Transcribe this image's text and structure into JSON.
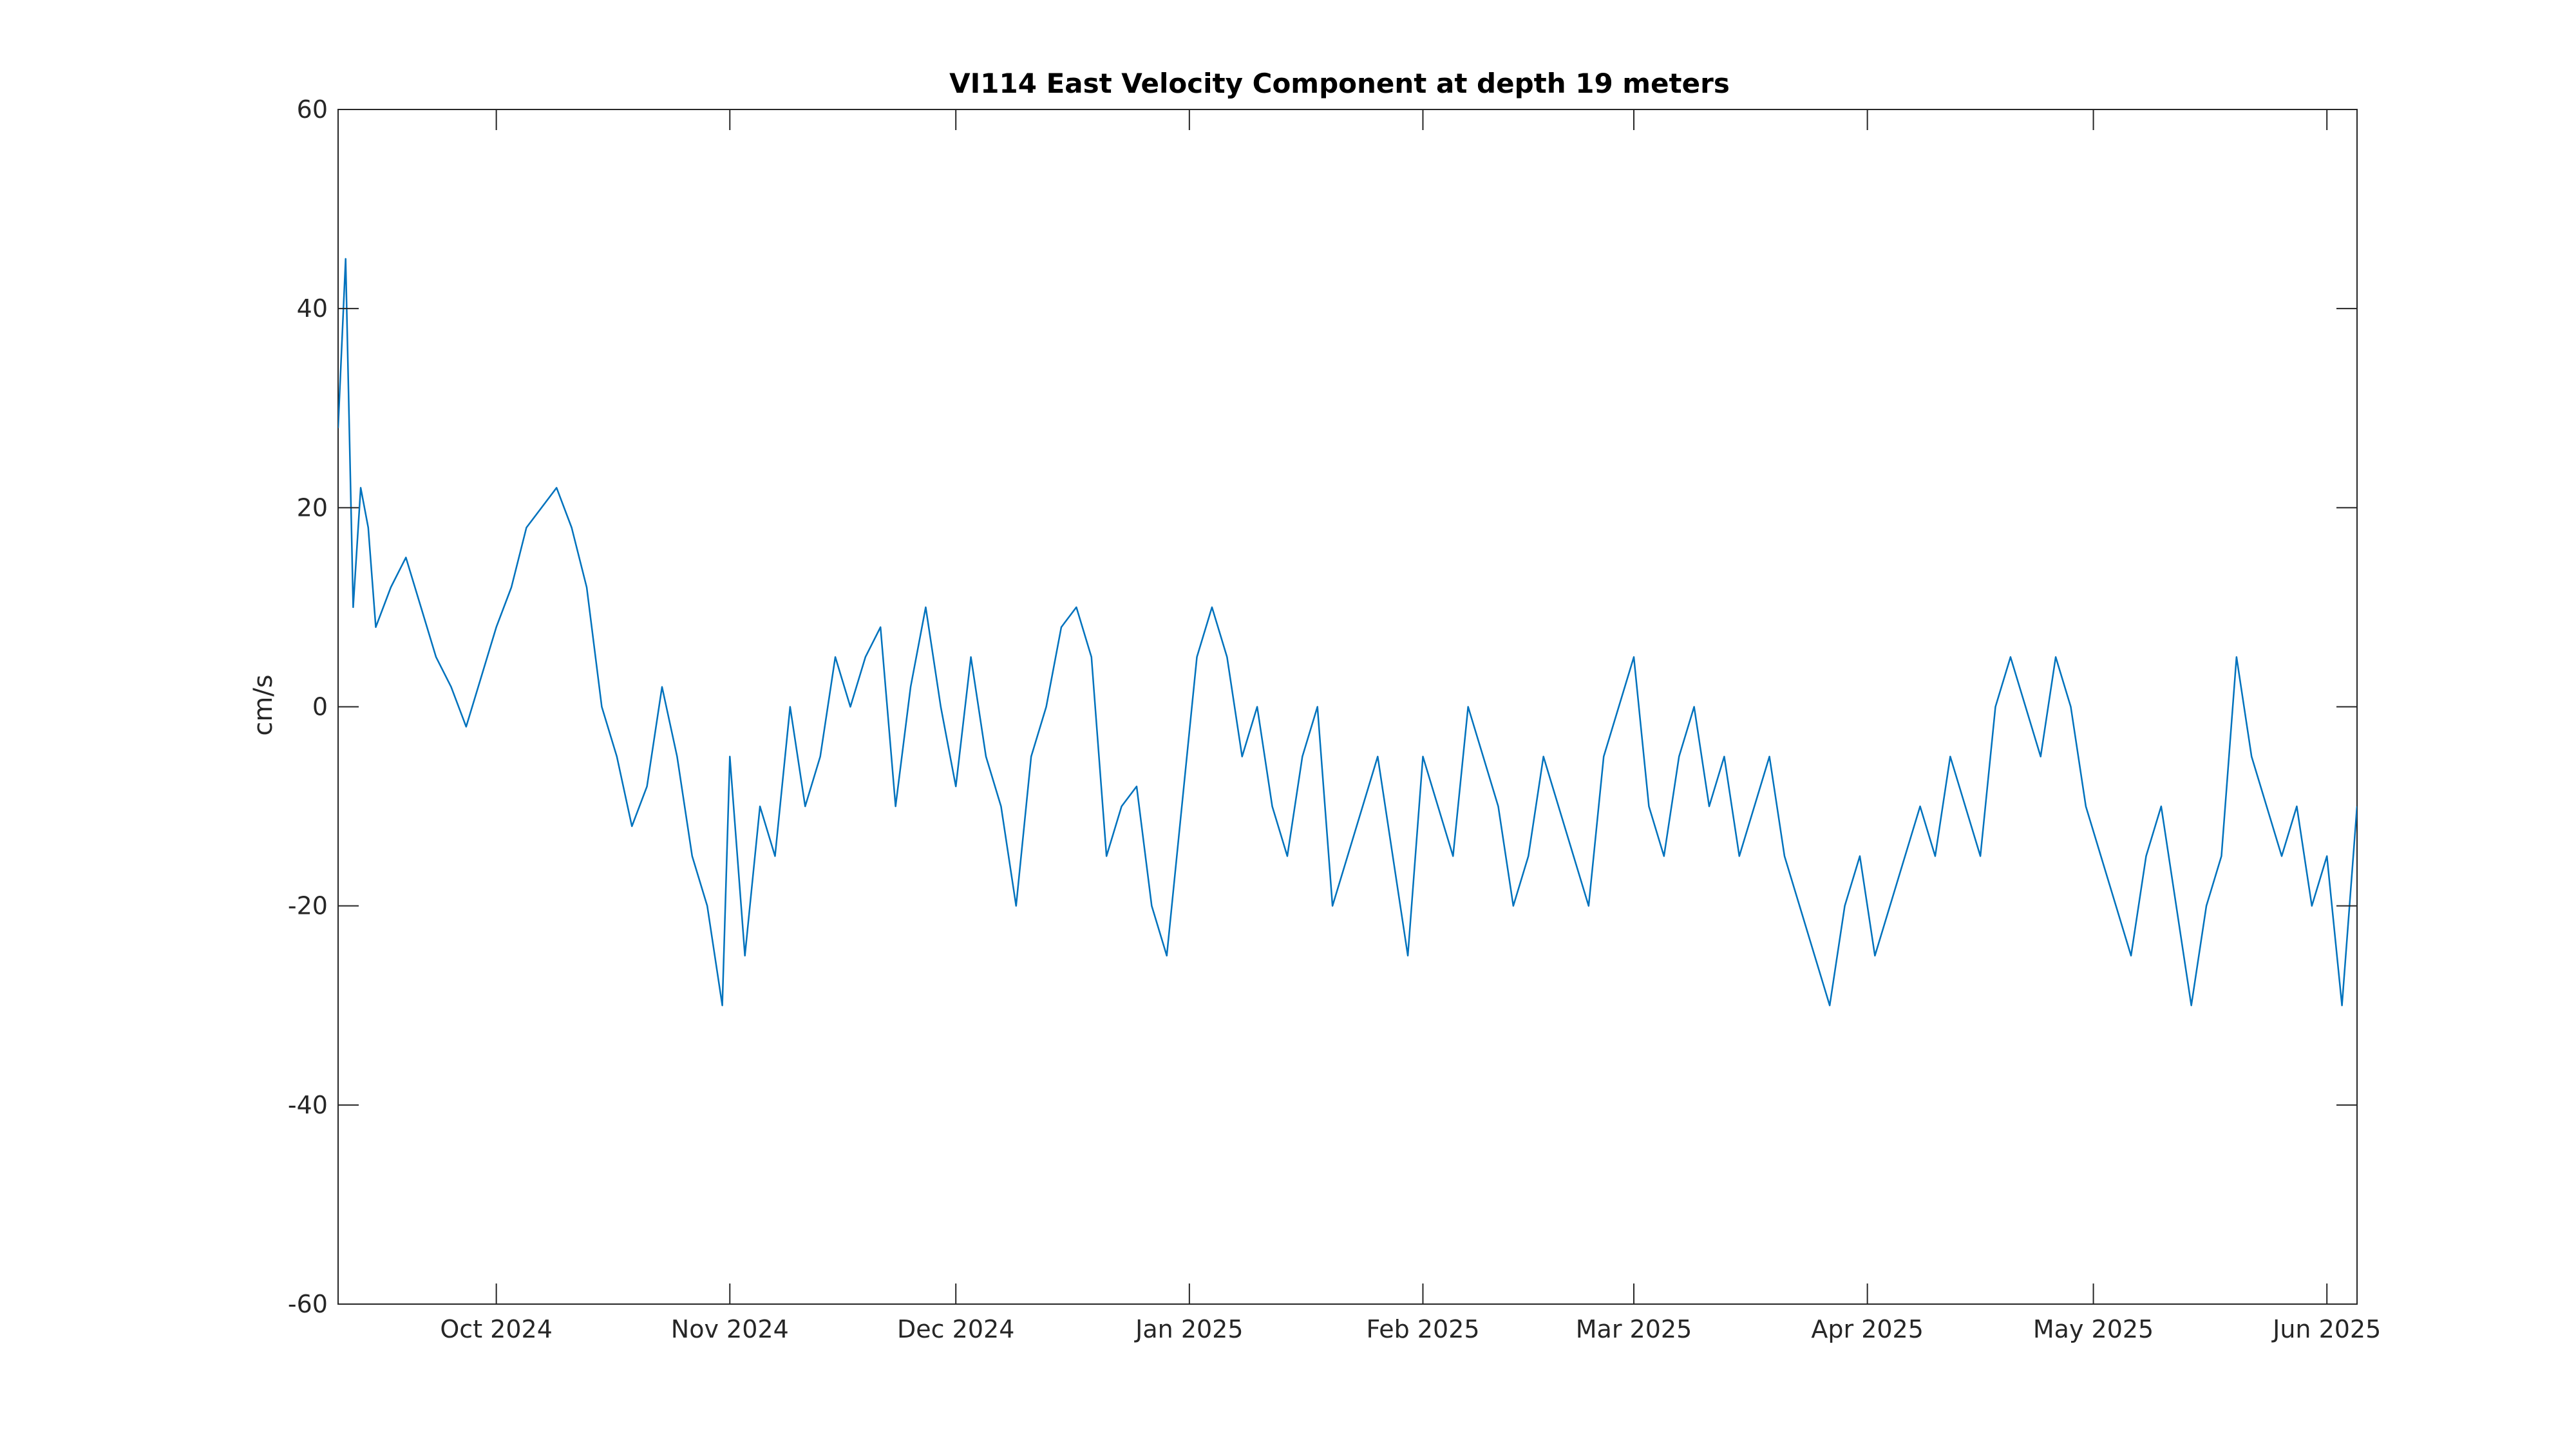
{
  "chart_data": {
    "type": "line",
    "title": "VI114 East Velocity Component at depth 19 meters",
    "xlabel": "",
    "ylabel": "cm/s",
    "xlim": [
      "2024-09-10",
      "2025-06-05"
    ],
    "ylim": [
      -60,
      60
    ],
    "grid": false,
    "legend": "none",
    "x_ticks": [
      {
        "date": "2024-10-01",
        "label": "Oct 2024"
      },
      {
        "date": "2024-11-01",
        "label": "Nov 2024"
      },
      {
        "date": "2024-12-01",
        "label": "Dec 2024"
      },
      {
        "date": "2025-01-01",
        "label": "Jan 2025"
      },
      {
        "date": "2025-02-01",
        "label": "Feb 2025"
      },
      {
        "date": "2025-03-01",
        "label": "Mar 2025"
      },
      {
        "date": "2025-04-01",
        "label": "Apr 2025"
      },
      {
        "date": "2025-05-01",
        "label": "May 2025"
      },
      {
        "date": "2025-06-01",
        "label": "Jun 2025"
      }
    ],
    "y_ticks": [
      {
        "value": 60,
        "label": "60"
      },
      {
        "value": 40,
        "label": "40"
      },
      {
        "value": 20,
        "label": "20"
      },
      {
        "value": 0,
        "label": "0"
      },
      {
        "value": -20,
        "label": "-20"
      },
      {
        "value": -40,
        "label": "-40"
      },
      {
        "value": -60,
        "label": "-60"
      }
    ],
    "series": [
      {
        "color": "#0072bd",
        "x": [
          "2024-09-10",
          "2024-09-11",
          "2024-09-12",
          "2024-09-13",
          "2024-09-14",
          "2024-09-15",
          "2024-09-17",
          "2024-09-19",
          "2024-09-21",
          "2024-09-23",
          "2024-09-25",
          "2024-09-27",
          "2024-09-29",
          "2024-10-01",
          "2024-10-03",
          "2024-10-05",
          "2024-10-07",
          "2024-10-09",
          "2024-10-11",
          "2024-10-13",
          "2024-10-15",
          "2024-10-17",
          "2024-10-19",
          "2024-10-21",
          "2024-10-23",
          "2024-10-25",
          "2024-10-27",
          "2024-10-29",
          "2024-10-31",
          "2024-11-01",
          "2024-11-03",
          "2024-11-05",
          "2024-11-07",
          "2024-11-09",
          "2024-11-11",
          "2024-11-13",
          "2024-11-15",
          "2024-11-17",
          "2024-11-19",
          "2024-11-21",
          "2024-11-23",
          "2024-11-25",
          "2024-11-27",
          "2024-11-29",
          "2024-12-01",
          "2024-12-03",
          "2024-12-05",
          "2024-12-07",
          "2024-12-09",
          "2024-12-11",
          "2024-12-13",
          "2024-12-15",
          "2024-12-17",
          "2024-12-19",
          "2024-12-21",
          "2024-12-23",
          "2024-12-25",
          "2024-12-27",
          "2024-12-29",
          "2024-12-31",
          "2025-01-02",
          "2025-01-04",
          "2025-01-06",
          "2025-01-08",
          "2025-01-10",
          "2025-01-12",
          "2025-01-14",
          "2025-01-16",
          "2025-01-18",
          "2025-01-20",
          "2025-01-22",
          "2025-01-24",
          "2025-01-26",
          "2025-01-28",
          "2025-01-30",
          "2025-02-01",
          "2025-02-03",
          "2025-02-05",
          "2025-02-07",
          "2025-02-09",
          "2025-02-11",
          "2025-02-13",
          "2025-02-15",
          "2025-02-17",
          "2025-02-19",
          "2025-02-21",
          "2025-02-23",
          "2025-02-25",
          "2025-02-27",
          "2025-03-01",
          "2025-03-03",
          "2025-03-05",
          "2025-03-07",
          "2025-03-09",
          "2025-03-11",
          "2025-03-13",
          "2025-03-15",
          "2025-03-17",
          "2025-03-19",
          "2025-03-21",
          "2025-03-23",
          "2025-03-25",
          "2025-03-27",
          "2025-03-29",
          "2025-03-31",
          "2025-04-02",
          "2025-04-04",
          "2025-04-06",
          "2025-04-08",
          "2025-04-10",
          "2025-04-12",
          "2025-04-14",
          "2025-04-16",
          "2025-04-18",
          "2025-04-20",
          "2025-04-22",
          "2025-04-24",
          "2025-04-26",
          "2025-04-28",
          "2025-04-30",
          "2025-05-02",
          "2025-05-04",
          "2025-05-06",
          "2025-05-08",
          "2025-05-10",
          "2025-05-12",
          "2025-05-14",
          "2025-05-16",
          "2025-05-18",
          "2025-05-20",
          "2025-05-22",
          "2025-05-24",
          "2025-05-26",
          "2025-05-28",
          "2025-05-30",
          "2025-06-01",
          "2025-06-03",
          "2025-06-05"
        ],
        "y": [
          28,
          45,
          10,
          22,
          18,
          8,
          12,
          15,
          10,
          5,
          2,
          -2,
          3,
          8,
          12,
          18,
          20,
          22,
          18,
          12,
          0,
          -5,
          -12,
          -8,
          2,
          -5,
          -15,
          -20,
          -30,
          -5,
          -25,
          -10,
          -15,
          0,
          -10,
          -5,
          5,
          0,
          5,
          8,
          -10,
          2,
          10,
          0,
          -8,
          5,
          -5,
          -10,
          -20,
          -5,
          0,
          8,
          10,
          5,
          -15,
          -10,
          -8,
          -20,
          -25,
          -10,
          5,
          10,
          5,
          -5,
          0,
          -10,
          -15,
          -5,
          0,
          -20,
          -15,
          -10,
          -5,
          -15,
          -25,
          -5,
          -10,
          -15,
          0,
          -5,
          -10,
          -20,
          -15,
          -5,
          -10,
          -15,
          -20,
          -5,
          0,
          5,
          -10,
          -15,
          -5,
          0,
          -10,
          -5,
          -15,
          -10,
          -5,
          -15,
          -20,
          -25,
          -30,
          -20,
          -15,
          -25,
          -20,
          -15,
          -10,
          -15,
          -5,
          -10,
          -15,
          0,
          5,
          0,
          -5,
          5,
          0,
          -10,
          -15,
          -20,
          -25,
          -15,
          -10,
          -20,
          -30,
          -20,
          -15,
          5,
          -5,
          -10,
          -15,
          -10,
          -20,
          -15,
          -30,
          -10
        ]
      }
    ]
  }
}
